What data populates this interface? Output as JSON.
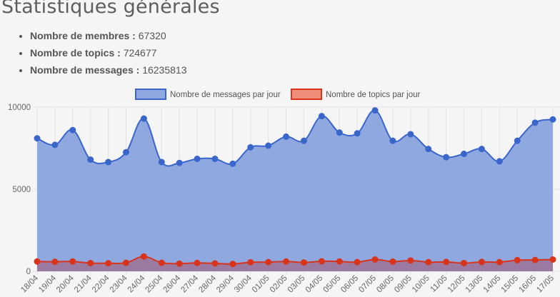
{
  "title": "Statistiques générales",
  "stats": [
    {
      "label": "Nombre de membres :",
      "value": "67320"
    },
    {
      "label": "Nombre de topics :",
      "value": "724677"
    },
    {
      "label": "Nombre de messages :",
      "value": "16235813"
    }
  ],
  "colors": {
    "messages_line": "#3a66cc",
    "messages_fill": "#8fa8e0",
    "topics_line": "#d9341b",
    "topics_fill": "#9a7aa0",
    "legend_topics_fill": "#ee8e78",
    "grid": "#e2e2e2"
  },
  "chart_data": {
    "type": "area",
    "x": [
      "18/04",
      "19/04",
      "20/04",
      "21/04",
      "22/04",
      "23/04",
      "24/04",
      "25/04",
      "26/04",
      "27/04",
      "28/04",
      "29/04",
      "30/04",
      "01/05",
      "02/05",
      "03/05",
      "04/05",
      "05/05",
      "06/05",
      "07/05",
      "08/05",
      "09/05",
      "10/05",
      "11/05",
      "12/05",
      "13/05",
      "14/05",
      "15/05",
      "16/05",
      "17/05"
    ],
    "series": [
      {
        "name": "Nombre de messages par jour",
        "values": [
          8100,
          7700,
          8600,
          6800,
          6650,
          7250,
          9300,
          6650,
          6600,
          6850,
          6850,
          6550,
          7550,
          7650,
          8200,
          7950,
          9450,
          8450,
          8400,
          9800,
          7950,
          8350,
          7450,
          6950,
          7150,
          7450,
          6700,
          7950,
          9050,
          9250
        ]
      },
      {
        "name": "Nombre de topics par jour",
        "values": [
          600,
          580,
          600,
          500,
          490,
          520,
          900,
          520,
          470,
          510,
          480,
          450,
          550,
          560,
          600,
          540,
          610,
          600,
          560,
          720,
          590,
          660,
          560,
          570,
          500,
          570,
          560,
          680,
          690,
          720
        ]
      }
    ],
    "yticks": [
      "0",
      "5000",
      "10000"
    ],
    "ylim": [
      0,
      10000
    ],
    "grid": true,
    "legend": "top"
  }
}
